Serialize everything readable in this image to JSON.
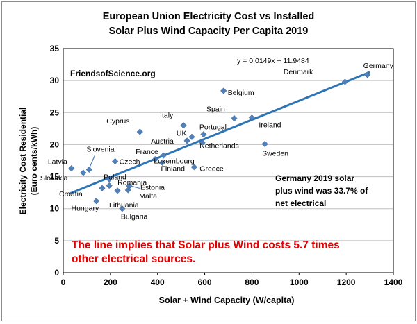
{
  "chart_data": {
    "type": "scatter",
    "title": [
      "European Union Electricity Cost vs Installed",
      "Solar Plus Wind Capacity Per Capita 2019"
    ],
    "xlabel": "Solar + Wind Capacity (W/capita)",
    "ylabel": [
      "Electricity Cost Residential",
      "(Euro cents/kWh)"
    ],
    "xlim": [
      0,
      1400
    ],
    "ylim": [
      0,
      35
    ],
    "xticks": [
      0,
      200,
      400,
      600,
      800,
      1000,
      1200,
      1400
    ],
    "yticks": [
      0,
      5,
      10,
      15,
      20,
      25,
      30,
      35
    ],
    "grid": true,
    "marker_color": "#4f81bd",
    "trendline": {
      "equation": "y = 0.0149x + 11.9484",
      "slope": 0.0149,
      "intercept": 11.9484,
      "x_range": [
        30,
        1300
      ],
      "color": "#2e75b6"
    },
    "points": [
      {
        "label": "Germany",
        "x": 1290,
        "y": 30.9
      },
      {
        "label": "Denmark",
        "x": 1195,
        "y": 29.8
      },
      {
        "label": "Belgium",
        "x": 680,
        "y": 28.4
      },
      {
        "label": "Ireland",
        "x": 800,
        "y": 24.2
      },
      {
        "label": "Spain",
        "x": 725,
        "y": 24.1
      },
      {
        "label": "Italy",
        "x": 510,
        "y": 23.0
      },
      {
        "label": "Cyprus",
        "x": 325,
        "y": 22.0
      },
      {
        "label": "Portugal",
        "x": 595,
        "y": 21.6
      },
      {
        "label": "UK",
        "x": 545,
        "y": 21.2
      },
      {
        "label": "Austria",
        "x": 525,
        "y": 20.6
      },
      {
        "label": "Netherlands",
        "x": 590,
        "y": 20.3
      },
      {
        "label": "Sweden",
        "x": 855,
        "y": 20.1
      },
      {
        "label": "France",
        "x": 425,
        "y": 18.3
      },
      {
        "label": "Luxembourg",
        "x": 390,
        "y": 17.7
      },
      {
        "label": "Czech",
        "x": 220,
        "y": 17.4
      },
      {
        "label": "Finland",
        "x": 420,
        "y": 17.2
      },
      {
        "label": "Greece",
        "x": 555,
        "y": 16.5
      },
      {
        "label": "Latvia",
        "x": 35,
        "y": 16.3
      },
      {
        "label": "Slovenia",
        "x": 110,
        "y": 16.1
      },
      {
        "label": "Slovakia",
        "x": 85,
        "y": 15.6
      },
      {
        "label": "Poland",
        "x": 195,
        "y": 14.6
      },
      {
        "label": "Romania",
        "x": 195,
        "y": 13.6
      },
      {
        "label": "Estonia",
        "x": 280,
        "y": 13.5
      },
      {
        "label": "Croatia",
        "x": 165,
        "y": 13.2
      },
      {
        "label": "Malta",
        "x": 275,
        "y": 12.9
      },
      {
        "label": "Lithuania",
        "x": 230,
        "y": 12.8
      },
      {
        "label": "Hungary",
        "x": 140,
        "y": 11.2
      },
      {
        "label": "Bulgaria",
        "x": 250,
        "y": 10.0
      }
    ],
    "annotations": {
      "watermark": "FriendsofScience.org",
      "germany_note": [
        "Germany 2019 solar",
        "plus wind was 33.7% of",
        "net electrical"
      ],
      "conclusion": [
        "The line implies that Solar plus Wind costs 5.7 times",
        "other electrical sources."
      ],
      "conclusion_color": "#e00000"
    }
  }
}
